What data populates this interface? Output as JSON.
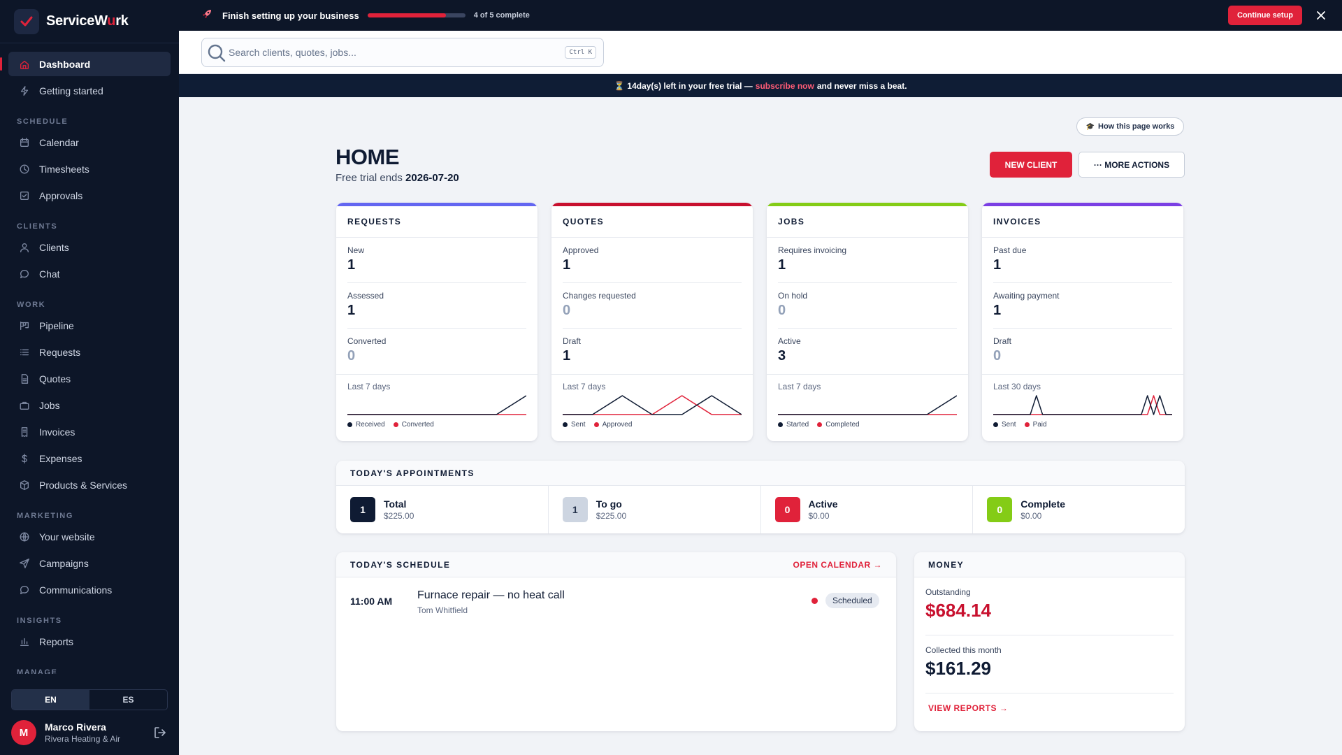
{
  "brand": {
    "name_prefix": "ServiceW",
    "name_highlight": "u",
    "name_suffix": "rk"
  },
  "nav": {
    "top": [
      {
        "label": "Dashboard",
        "icon": "home-icon",
        "active": true
      },
      {
        "label": "Getting started",
        "icon": "bolt-icon"
      }
    ],
    "sections": [
      {
        "title": "SCHEDULE",
        "items": [
          {
            "label": "Calendar",
            "icon": "calendar-icon"
          },
          {
            "label": "Timesheets",
            "icon": "clock-icon"
          },
          {
            "label": "Approvals",
            "icon": "check-square-icon"
          }
        ]
      },
      {
        "title": "CLIENTS",
        "items": [
          {
            "label": "Clients",
            "icon": "user-icon"
          },
          {
            "label": "Chat",
            "icon": "chat-icon"
          }
        ]
      },
      {
        "title": "WORK",
        "items": [
          {
            "label": "Pipeline",
            "icon": "pipeline-icon"
          },
          {
            "label": "Requests",
            "icon": "list-icon"
          },
          {
            "label": "Quotes",
            "icon": "document-icon"
          },
          {
            "label": "Jobs",
            "icon": "briefcase-icon"
          },
          {
            "label": "Invoices",
            "icon": "invoice-icon"
          },
          {
            "label": "Expenses",
            "icon": "dollar-icon"
          },
          {
            "label": "Products & Services",
            "icon": "box-icon"
          }
        ]
      },
      {
        "title": "MARKETING",
        "items": [
          {
            "label": "Your website",
            "icon": "globe-icon"
          },
          {
            "label": "Campaigns",
            "icon": "send-icon"
          },
          {
            "label": "Communications",
            "icon": "message-icon"
          }
        ]
      },
      {
        "title": "INSIGHTS",
        "items": [
          {
            "label": "Reports",
            "icon": "bar-chart-icon"
          }
        ]
      }
    ],
    "cut_section": "MANAGE"
  },
  "lang": {
    "en": "EN",
    "es": "ES"
  },
  "user": {
    "initial": "M",
    "name": "Marco Rivera",
    "company": "Rivera Heating & Air"
  },
  "setup": {
    "title": "Finish setting up your business",
    "progress": 0.8,
    "count": "4 of 5 complete",
    "continue": "Continue setup"
  },
  "search": {
    "placeholder": "Search clients, quotes, jobs...",
    "shortcut": "Ctrl K"
  },
  "trial": {
    "icon": "⏳",
    "days": "14",
    "before": " day(s) left in your free trial — ",
    "link": "subscribe now",
    "after": " and never miss a beat."
  },
  "page": {
    "how": "How this page works",
    "title": "HOME",
    "sub_prefix": "Free trial ends ",
    "sub_date": "2026-07-20",
    "new_client": "NEW CLIENT",
    "more_actions": "··· MORE ACTIONS"
  },
  "colors": {
    "accent": "#e0223a",
    "navy": "#0f1b33",
    "purple": "#7b3fe4",
    "indigo": "#6366f1",
    "green": "#84cc16",
    "crimson": "#c8102e"
  },
  "cards": [
    {
      "title": "REQUESTS",
      "accent": "#6366f1",
      "rows": [
        {
          "label": "New",
          "value": "1"
        },
        {
          "label": "Assessed",
          "value": "1"
        },
        {
          "label": "Converted",
          "value": "0"
        }
      ],
      "period": "Last 7 days",
      "legend": [
        {
          "label": "Received",
          "color": "#0f1b33"
        },
        {
          "label": "Converted",
          "color": "#e0223a"
        }
      ]
    },
    {
      "title": "QUOTES",
      "accent": "#c8102e",
      "rows": [
        {
          "label": "Approved",
          "value": "1"
        },
        {
          "label": "Changes requested",
          "value": "0"
        },
        {
          "label": "Draft",
          "value": "1"
        }
      ],
      "period": "Last 7 days",
      "legend": [
        {
          "label": "Sent",
          "color": "#0f1b33"
        },
        {
          "label": "Approved",
          "color": "#e0223a"
        }
      ]
    },
    {
      "title": "JOBS",
      "accent": "#84cc16",
      "rows": [
        {
          "label": "Requires invoicing",
          "value": "1"
        },
        {
          "label": "On hold",
          "value": "0"
        },
        {
          "label": "Active",
          "value": "3"
        }
      ],
      "period": "Last 7 days",
      "legend": [
        {
          "label": "Started",
          "color": "#0f1b33"
        },
        {
          "label": "Completed",
          "color": "#e0223a"
        }
      ]
    },
    {
      "title": "INVOICES",
      "accent": "#7b3fe4",
      "rows": [
        {
          "label": "Past due",
          "value": "1"
        },
        {
          "label": "Awaiting payment",
          "value": "1"
        },
        {
          "label": "Draft",
          "value": "0"
        }
      ],
      "period": "Last 30 days",
      "legend": [
        {
          "label": "Sent",
          "color": "#0f1b33"
        },
        {
          "label": "Paid",
          "color": "#e0223a"
        }
      ]
    }
  ],
  "chart_data": [
    {
      "type": "line",
      "title": "",
      "x": [
        1,
        2,
        3,
        4,
        5,
        6,
        7
      ],
      "ylim": [
        0,
        1
      ],
      "series": [
        {
          "name": "Received",
          "values": [
            0,
            0,
            0,
            0,
            0,
            0,
            1
          ]
        },
        {
          "name": "Converted",
          "values": [
            0,
            0,
            0,
            0,
            0,
            0,
            0
          ]
        }
      ]
    },
    {
      "type": "line",
      "title": "",
      "x": [
        1,
        2,
        3,
        4,
        5,
        6,
        7
      ],
      "ylim": [
        0,
        1
      ],
      "series": [
        {
          "name": "Sent",
          "values": [
            0,
            0,
            1,
            0,
            0,
            1,
            0
          ]
        },
        {
          "name": "Approved",
          "values": [
            0,
            0,
            0,
            0,
            1,
            0,
            0
          ]
        }
      ]
    },
    {
      "type": "line",
      "title": "",
      "x": [
        1,
        2,
        3,
        4,
        5,
        6,
        7
      ],
      "ylim": [
        0,
        1
      ],
      "series": [
        {
          "name": "Started",
          "values": [
            0,
            0,
            0,
            0,
            0,
            0,
            1
          ]
        },
        {
          "name": "Completed",
          "values": [
            0,
            0,
            0,
            0,
            0,
            0,
            0
          ]
        }
      ]
    },
    {
      "type": "line",
      "title": "",
      "x": [
        1,
        2,
        3,
        4,
        5,
        6,
        7,
        8,
        9,
        10,
        11,
        12,
        13,
        14,
        15,
        16,
        17,
        18,
        19,
        20,
        21,
        22,
        23,
        24,
        25,
        26,
        27,
        28,
        29,
        30
      ],
      "ylim": [
        0,
        1
      ],
      "series": [
        {
          "name": "Sent",
          "values": [
            0,
            0,
            0,
            0,
            0,
            0,
            0,
            1,
            0,
            0,
            0,
            0,
            0,
            0,
            0,
            0,
            0,
            0,
            0,
            0,
            0,
            0,
            0,
            0,
            0,
            1,
            0,
            1,
            0,
            0
          ]
        },
        {
          "name": "Paid",
          "values": [
            0,
            0,
            0,
            0,
            0,
            0,
            0,
            0,
            0,
            0,
            0,
            0,
            0,
            0,
            0,
            0,
            0,
            0,
            0,
            0,
            0,
            0,
            0,
            0,
            0,
            0,
            1,
            0,
            0,
            0
          ]
        }
      ]
    }
  ],
  "appointments": {
    "title": "TODAY'S APPOINTMENTS",
    "items": [
      {
        "count": "1",
        "label": "Total",
        "amount": "$225.00",
        "color": "#0f1b33",
        "text": "#ffffff"
      },
      {
        "count": "1",
        "label": "To go",
        "amount": "$225.00",
        "color": "#cdd5e1",
        "text": "#24324b"
      },
      {
        "count": "0",
        "label": "Active",
        "amount": "$0.00",
        "color": "#e0223a",
        "text": "#ffffff"
      },
      {
        "count": "0",
        "label": "Complete",
        "amount": "$0.00",
        "color": "#84cc16",
        "text": "#ffffff"
      }
    ]
  },
  "schedule": {
    "title": "TODAY'S SCHEDULE",
    "open_calendar": "OPEN CALENDAR →",
    "items": [
      {
        "time": "11:00 AM",
        "title": "Furnace repair — no heat call",
        "client": "Tom Whitfield",
        "status": "Scheduled"
      }
    ]
  },
  "money": {
    "title": "MONEY",
    "outstanding_label": "Outstanding",
    "outstanding_value": "$684.14",
    "collected_label": "Collected this month",
    "collected_value": "$161.29",
    "view_reports": "VIEW REPORTS →"
  }
}
